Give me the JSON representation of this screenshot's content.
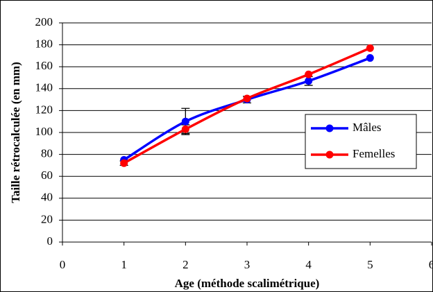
{
  "chart_data": {
    "type": "line",
    "xlabel": "Age (méthode scalimétrique)",
    "ylabel": "Taille rétrocalculée (en mm)",
    "x": [
      1,
      2,
      3,
      4,
      5
    ],
    "series": [
      {
        "name": "Mâles",
        "color": "#0000ff",
        "values": [
          75,
          110,
          130,
          147,
          168
        ],
        "errors": [
          null,
          12,
          3,
          4,
          null
        ]
      },
      {
        "name": "Femelles",
        "color": "#ff0000",
        "values": [
          72,
          103,
          131,
          153,
          177
        ],
        "errors": [
          2,
          4,
          null,
          null,
          null
        ]
      }
    ],
    "xlim": [
      0,
      6
    ],
    "xticks": [
      0,
      1,
      2,
      3,
      4,
      5,
      6
    ],
    "ylim": [
      0,
      200
    ],
    "yticks": [
      0,
      20,
      40,
      60,
      80,
      100,
      120,
      140,
      160,
      180,
      200
    ],
    "grid": true,
    "legend": "right"
  }
}
